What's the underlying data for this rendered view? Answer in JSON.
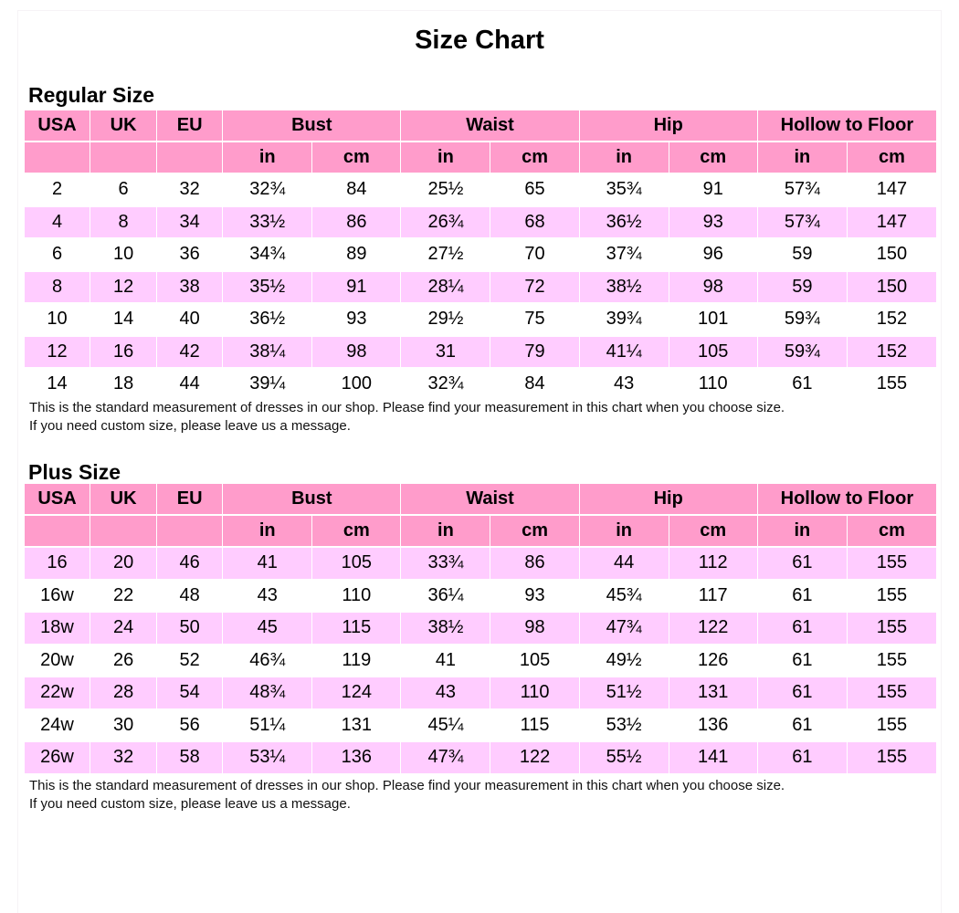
{
  "title": "Size Chart",
  "colors": {
    "header": "#ff9ccb",
    "alt_row": "#ffccff",
    "row": "#ffffff"
  },
  "columns": {
    "usa": "USA",
    "uk": "UK",
    "eu": "EU",
    "groups": [
      "Bust",
      "Waist",
      "Hip",
      "Hollow to Floor"
    ],
    "units": [
      "in",
      "cm",
      "in",
      "cm",
      "in",
      "cm",
      "in",
      "cm"
    ]
  },
  "regular": {
    "heading": "Regular Size",
    "rows": [
      [
        "2",
        "6",
        "32",
        "32¾",
        "84",
        "25½",
        "65",
        "35¾",
        "91",
        "57¾",
        "147"
      ],
      [
        "4",
        "8",
        "34",
        "33½",
        "86",
        "26¾",
        "68",
        "36½",
        "93",
        "57¾",
        "147"
      ],
      [
        "6",
        "10",
        "36",
        "34¾",
        "89",
        "27½",
        "70",
        "37¾",
        "96",
        "59",
        "150"
      ],
      [
        "8",
        "12",
        "38",
        "35½",
        "91",
        "28¼",
        "72",
        "38½",
        "98",
        "59",
        "150"
      ],
      [
        "10",
        "14",
        "40",
        "36½",
        "93",
        "29½",
        "75",
        "39¾",
        "101",
        "59¾",
        "152"
      ],
      [
        "12",
        "16",
        "42",
        "38¼",
        "98",
        "31",
        "79",
        "41¼",
        "105",
        "59¾",
        "152"
      ],
      [
        "14",
        "18",
        "44",
        "39¼",
        "100",
        "32¾",
        "84",
        "43",
        "110",
        "61",
        "155"
      ]
    ],
    "note_1": "This is the standard measurement of dresses in our shop. Please find your measurement in this chart when you choose size.",
    "note_2": "If you need custom size, please leave us a message."
  },
  "plus": {
    "heading": "Plus Size",
    "rows": [
      [
        "16",
        "20",
        "46",
        "41",
        "105",
        "33¾",
        "86",
        "44",
        "112",
        "61",
        "155"
      ],
      [
        "16w",
        "22",
        "48",
        "43",
        "110",
        "36¼",
        "93",
        "45¾",
        "117",
        "61",
        "155"
      ],
      [
        "18w",
        "24",
        "50",
        "45",
        "115",
        "38½",
        "98",
        "47¾",
        "122",
        "61",
        "155"
      ],
      [
        "20w",
        "26",
        "52",
        "46¾",
        "119",
        "41",
        "105",
        "49½",
        "126",
        "61",
        "155"
      ],
      [
        "22w",
        "28",
        "54",
        "48¾",
        "124",
        "43",
        "110",
        "51½",
        "131",
        "61",
        "155"
      ],
      [
        "24w",
        "30",
        "56",
        "51¼",
        "131",
        "45¼",
        "115",
        "53½",
        "136",
        "61",
        "155"
      ],
      [
        "26w",
        "32",
        "58",
        "53¼",
        "136",
        "47¾",
        "122",
        "55½",
        "141",
        "61",
        "155"
      ]
    ],
    "note_1": "This is the standard measurement of dresses in our shop. Please find your measurement in this chart when you choose size.",
    "note_2": "If you need custom size, please leave us a message."
  }
}
